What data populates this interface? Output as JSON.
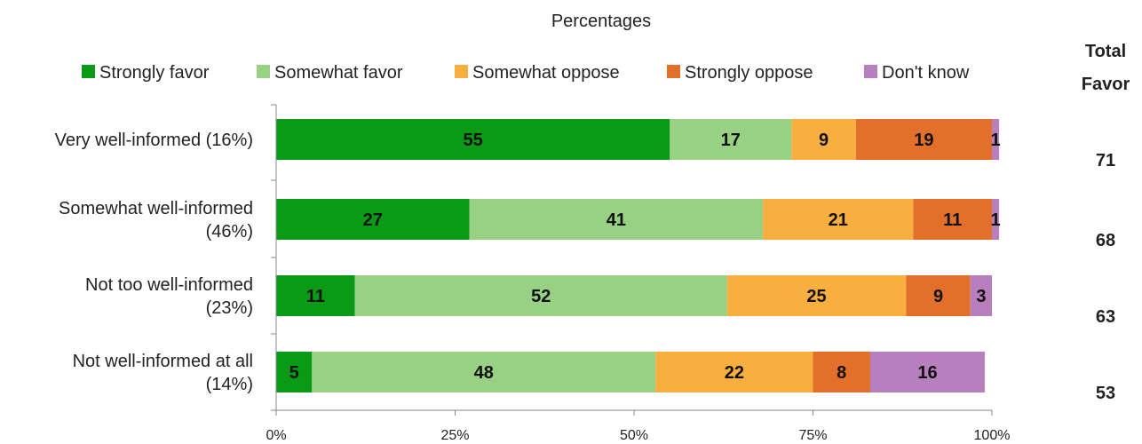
{
  "chart_data": {
    "type": "bar",
    "orientation": "horizontal",
    "stacked": true,
    "subtitle": "Percentages",
    "categories": [
      [
        "Very well-informed (16%)"
      ],
      [
        "Somewhat well-informed",
        "(46%)"
      ],
      [
        "Not too well-informed",
        "(23%)"
      ],
      [
        "Not well-informed at all",
        "(14%)"
      ]
    ],
    "series": [
      {
        "name": "Strongly favor",
        "color": "#0a9a16",
        "values": [
          55,
          27,
          11,
          5
        ]
      },
      {
        "name": "Somewhat favor",
        "color": "#99d184",
        "values": [
          17,
          41,
          52,
          48
        ]
      },
      {
        "name": "Somewhat oppose",
        "color": "#f9ae40",
        "values": [
          9,
          21,
          25,
          22
        ]
      },
      {
        "name": "Strongly oppose",
        "color": "#e2702a",
        "values": [
          19,
          11,
          9,
          8
        ]
      },
      {
        "name": "Don't know",
        "color": "#b77fbe",
        "values": [
          1,
          1,
          3,
          16
        ]
      }
    ],
    "total_favor": {
      "header": [
        "Total",
        "Favor"
      ],
      "values": [
        71,
        68,
        63,
        53
      ]
    },
    "x_ticks": [
      "0%",
      "25%",
      "50%",
      "75%",
      "100%"
    ],
    "xlim": [
      0,
      100
    ],
    "legend_position": "top",
    "grid": false
  }
}
